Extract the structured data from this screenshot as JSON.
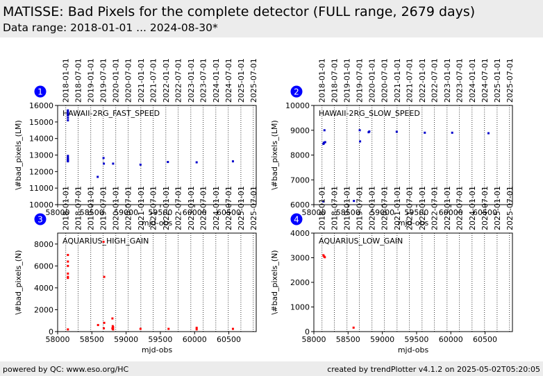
{
  "header": {
    "title": "MATISSE: Bad Pixels for the complete detector (FULL range, 2679 days)",
    "subtitle": "Data range: 2018-01-01 ... 2024-08-30*"
  },
  "footer": {
    "left": "powered by QC: www.eso.org/HC",
    "right": "created by trendPlotter v4.1.2 on 2025-05-02T05:20:05"
  },
  "colors": {
    "blue": "#0000cc",
    "red": "#ff0000",
    "badge": "#0000ff",
    "band": "#ececec"
  },
  "date_ticks": [
    {
      "label": "2018-01-01",
      "mjd": 58119
    },
    {
      "label": "2018-07-01",
      "mjd": 58300
    },
    {
      "label": "2019-01-01",
      "mjd": 58484
    },
    {
      "label": "2019-07-01",
      "mjd": 58665
    },
    {
      "label": "2020-01-01",
      "mjd": 58849
    },
    {
      "label": "2020-07-01",
      "mjd": 59031
    },
    {
      "label": "2021-01-01",
      "mjd": 59215
    },
    {
      "label": "2021-07-01",
      "mjd": 59396
    },
    {
      "label": "2022-01-01",
      "mjd": 59580
    },
    {
      "label": "2022-07-01",
      "mjd": 59761
    },
    {
      "label": "2023-01-01",
      "mjd": 59945
    },
    {
      "label": "2023-07-01",
      "mjd": 60126
    },
    {
      "label": "2024-01-01",
      "mjd": 60310
    },
    {
      "label": "2024-07-01",
      "mjd": 60492
    },
    {
      "label": "2025-01-01",
      "mjd": 60676
    },
    {
      "label": "2025-07-01",
      "mjd": 60857
    }
  ],
  "chart_data": [
    {
      "type": "scatter",
      "panel_number": "1",
      "annotation": "HAWAII-2RG_FAST_SPEED",
      "xlabel": "mjd-obs",
      "ylabel": "\\#bad_pixels_(LM)",
      "xlim": [
        58000,
        60900
      ],
      "ylim": [
        10000,
        16000
      ],
      "xticks": [
        58000,
        58500,
        59000,
        59500,
        60000,
        60500
      ],
      "yticks": [
        10000,
        11000,
        12000,
        13000,
        14000,
        15000,
        16000
      ],
      "series": [
        {
          "color": "blue",
          "x": [
            58150,
            58150,
            58150,
            58150,
            58150,
            58150,
            58150,
            58150,
            58150,
            58150,
            58150,
            58150,
            58150,
            58150,
            58585,
            58670,
            58675,
            58810,
            59210,
            59610,
            60030,
            60560
          ],
          "y": [
            15700,
            15600,
            15550,
            15450,
            15400,
            15250,
            15100,
            12950,
            12850,
            12780,
            12720,
            12680,
            12650,
            12620,
            11680,
            12820,
            12480,
            12480,
            12420,
            12580,
            12560,
            12620
          ]
        }
      ]
    },
    {
      "type": "scatter",
      "panel_number": "2",
      "annotation": "HAWAII-2RG_SLOW_SPEED",
      "xlabel": "mjd-obs",
      "ylabel": "\\#bad_pixels_(LM)",
      "xlim": [
        58000,
        60900
      ],
      "ylim": [
        6000,
        10000
      ],
      "xticks": [
        58000,
        58500,
        59000,
        59500,
        60000,
        60500
      ],
      "yticks": [
        6000,
        7000,
        8000,
        9000,
        10000
      ],
      "series": [
        {
          "color": "blue",
          "x": [
            58140,
            58140,
            58145,
            58150,
            58155,
            58165,
            58585,
            58670,
            58675,
            58800,
            58810,
            59210,
            59620,
            60020,
            60550
          ],
          "y": [
            6130,
            8450,
            8480,
            8500,
            9000,
            8520,
            6150,
            9000,
            8550,
            8920,
            8950,
            8940,
            8900,
            8900,
            8880
          ]
        }
      ]
    },
    {
      "type": "scatter",
      "panel_number": "3",
      "annotation": "AQUARIUS_HIGH_GAIN",
      "xlabel": "mjd-obs",
      "ylabel": "\\#bad_pixels_(N)",
      "xlim": [
        58000,
        60900
      ],
      "ylim": [
        0,
        9000
      ],
      "xticks": [
        58000,
        58500,
        59000,
        59500,
        60000,
        60500
      ],
      "yticks": [
        0,
        2000,
        4000,
        6000,
        8000
      ],
      "series": [
        {
          "color": "red",
          "x": [
            58150,
            58150,
            58150,
            58150,
            58150,
            58150,
            58150,
            58590,
            58670,
            58680,
            58680,
            58675,
            58800,
            58805,
            58810,
            58800,
            58805,
            58810,
            59210,
            59620,
            60030,
            60030,
            60560
          ],
          "y": [
            7000,
            6400,
            6000,
            5300,
            5000,
            4900,
            200,
            600,
            8200,
            5000,
            800,
            300,
            1200,
            500,
            400,
            300,
            250,
            200,
            250,
            250,
            350,
            200,
            250
          ]
        }
      ]
    },
    {
      "type": "scatter",
      "panel_number": "4",
      "annotation": "AQUARIUS_LOW_GAIN",
      "xlabel": "mjd-obs",
      "ylabel": "\\#bad_pixels_(N)",
      "xlim": [
        58000,
        60900
      ],
      "ylim": [
        0,
        4000
      ],
      "xticks": [
        58000,
        58500,
        59000,
        59500,
        60000,
        60500
      ],
      "yticks": [
        0,
        1000,
        2000,
        3000,
        4000
      ],
      "series": [
        {
          "color": "red",
          "x": [
            58140,
            58150,
            58160,
            58580
          ],
          "y": [
            3100,
            3050,
            3020,
            160
          ]
        }
      ]
    }
  ]
}
